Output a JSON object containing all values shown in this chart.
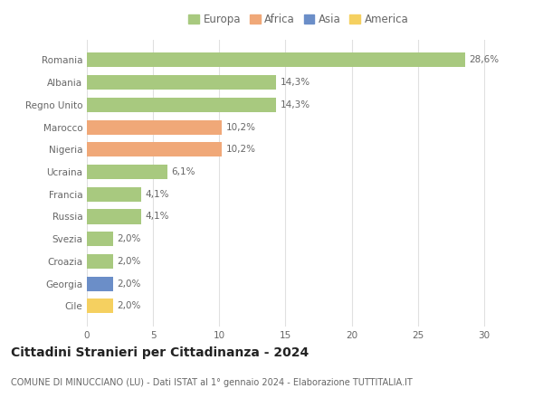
{
  "categories": [
    "Romania",
    "Albania",
    "Regno Unito",
    "Marocco",
    "Nigeria",
    "Ucraina",
    "Francia",
    "Russia",
    "Svezia",
    "Croazia",
    "Georgia",
    "Cile"
  ],
  "values": [
    28.6,
    14.3,
    14.3,
    10.2,
    10.2,
    6.1,
    4.1,
    4.1,
    2.0,
    2.0,
    2.0,
    2.0
  ],
  "labels": [
    "28,6%",
    "14,3%",
    "14,3%",
    "10,2%",
    "10,2%",
    "6,1%",
    "4,1%",
    "4,1%",
    "2,0%",
    "2,0%",
    "2,0%",
    "2,0%"
  ],
  "colors": [
    "#a8c97f",
    "#a8c97f",
    "#a8c97f",
    "#f0a878",
    "#f0a878",
    "#a8c97f",
    "#a8c97f",
    "#a8c97f",
    "#a8c97f",
    "#a8c97f",
    "#6b8ec8",
    "#f5d060"
  ],
  "legend_labels": [
    "Europa",
    "Africa",
    "Asia",
    "America"
  ],
  "legend_colors": [
    "#a8c97f",
    "#f0a878",
    "#6b8ec8",
    "#f5d060"
  ],
  "title": "Cittadini Stranieri per Cittadinanza - 2024",
  "subtitle": "COMUNE DI MINUCCIANO (LU) - Dati ISTAT al 1° gennaio 2024 - Elaborazione TUTTITALIA.IT",
  "xlim": [
    0,
    32
  ],
  "xticks": [
    0,
    5,
    10,
    15,
    20,
    25,
    30
  ],
  "background_color": "#ffffff",
  "grid_color": "#e0e0e0",
  "bar_height": 0.65,
  "label_fontsize": 7.5,
  "tick_fontsize": 7.5,
  "legend_fontsize": 8.5,
  "title_fontsize": 10,
  "subtitle_fontsize": 7,
  "text_color": "#666666"
}
